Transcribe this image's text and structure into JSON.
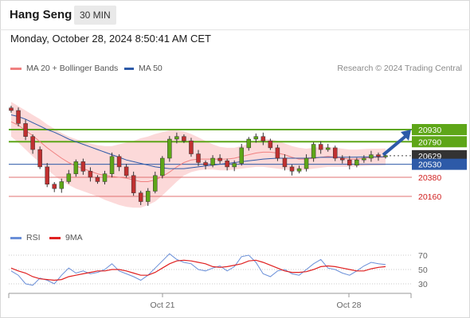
{
  "header": {
    "title": "Hang Seng",
    "interval": "30 MIN",
    "datetime": "Monday, October 28, 2024 8:50:41 AM CET"
  },
  "legend": {
    "ma20": "MA 20 + Bollinger Bands",
    "ma50": "MA 50",
    "credit": "Research © 2024 Trading Central",
    "rsi": "RSI",
    "ma9": "9MA"
  },
  "colors": {
    "resistance": "#5ea618",
    "support": "#e07070",
    "pivot": "#2d5aa8",
    "last_price_bg": "#333333",
    "ma20": "#f08080",
    "ma50": "#2d5aa8",
    "bollinger_fill": "#fbd2d2",
    "candle_up": "#5ea618",
    "candle_down": "#c03030",
    "rsi": "#6a8fd8",
    "rsi_ma9": "#e02020",
    "arrow": "#2d5aa8"
  },
  "chart_data": {
    "type": "candlestick",
    "price_range": [
      20050,
      21250
    ],
    "levels": [
      {
        "name": "resistance-2",
        "value": 20930,
        "label": "20930",
        "style": "resistance"
      },
      {
        "name": "resistance-1",
        "value": 20790,
        "label": "20790",
        "style": "resistance"
      },
      {
        "name": "last-price",
        "value": 20629,
        "label": "20629",
        "style": "last"
      },
      {
        "name": "pivot",
        "value": 20530,
        "label": "20530",
        "style": "pivot"
      },
      {
        "name": "support-1",
        "value": 20380,
        "label": "20380",
        "style": "support"
      },
      {
        "name": "support-2",
        "value": 20160,
        "label": "20160",
        "style": "support"
      }
    ],
    "x_labels": [
      "Oct 21",
      "Oct 28"
    ],
    "close_series": [
      21150,
      21000,
      20850,
      20700,
      20500,
      20300,
      20250,
      20330,
      20420,
      20560,
      20450,
      20380,
      20330,
      20420,
      20620,
      20500,
      20400,
      20200,
      20100,
      20220,
      20400,
      20600,
      20820,
      20850,
      20800,
      20650,
      20550,
      20520,
      20600,
      20570,
      20500,
      20540,
      20720,
      20820,
      20850,
      20800,
      20720,
      20600,
      20500,
      20450,
      20480,
      20600,
      20760,
      20700,
      20720,
      20600,
      20580,
      20520,
      20580,
      20600,
      20640,
      20620,
      20629
    ],
    "ma20_series": [
      21020,
      20980,
      20920,
      20860,
      20790,
      20720,
      20660,
      20600,
      20550,
      20510,
      20480,
      20450,
      20420,
      20400,
      20390,
      20380,
      20370,
      20350,
      20330,
      20330,
      20350,
      20390,
      20440,
      20500,
      20550,
      20580,
      20590,
      20590,
      20590,
      20590,
      20590,
      20600,
      20620,
      20640,
      20660,
      20670,
      20670,
      20660,
      20640,
      20610,
      20590,
      20590,
      20600,
      20610,
      20620,
      20610,
      20600,
      20590,
      20590,
      20600,
      20610,
      20610,
      20615
    ],
    "ma50_series": [
      21100,
      21080,
      21050,
      21010,
      20970,
      20930,
      20900,
      20860,
      20820,
      20790,
      20760,
      20730,
      20700,
      20670,
      20640,
      20610,
      20580,
      20560,
      20540,
      20520,
      20500,
      20490,
      20480,
      20480,
      20480,
      20490,
      20500,
      20510,
      20520,
      20530,
      20540,
      20550,
      20560,
      20570,
      20580,
      20590,
      20595,
      20600,
      20600,
      20600,
      20600,
      20600,
      20605,
      20610,
      20610,
      20612,
      20612,
      20612,
      20613,
      20614,
      20615,
      20616,
      20617
    ],
    "bollinger_upper": [
      21250,
      21200,
      21150,
      21100,
      21050,
      20990,
      20940,
      20890,
      20850,
      20820,
      20790,
      20770,
      20750,
      20740,
      20740,
      20760,
      20780,
      20800,
      20830,
      20850,
      20880,
      20900,
      20920,
      20920,
      20910,
      20880,
      20840,
      20800,
      20760,
      20730,
      20720,
      20720,
      20740,
      20770,
      20800,
      20820,
      20820,
      20800,
      20770,
      20740,
      20720,
      20710,
      20720,
      20730,
      20730,
      20720,
      20710,
      20700,
      20700,
      20705,
      20710,
      20710,
      20712
    ],
    "bollinger_lower": [
      20850,
      20780,
      20700,
      20620,
      20550,
      20470,
      20400,
      20340,
      20290,
      20250,
      20220,
      20190,
      20160,
      20120,
      20090,
      20060,
      20040,
      20030,
      20030,
      20060,
      20100,
      20170,
      20250,
      20330,
      20400,
      20440,
      20460,
      20470,
      20470,
      20460,
      20460,
      20470,
      20480,
      20490,
      20500,
      20500,
      20490,
      20480,
      20470,
      20460,
      20460,
      20470,
      20480,
      20490,
      20500,
      20500,
      20500,
      20500,
      20505,
      20510,
      20515,
      20515,
      20518
    ],
    "rsi": {
      "levels": [
        70,
        50,
        30
      ],
      "range": [
        10,
        80
      ],
      "rsi_series": [
        48,
        42,
        30,
        28,
        38,
        35,
        30,
        42,
        52,
        45,
        48,
        44,
        46,
        50,
        58,
        48,
        44,
        40,
        35,
        42,
        52,
        62,
        72,
        64,
        60,
        58,
        50,
        48,
        52,
        55,
        48,
        54,
        68,
        70,
        60,
        44,
        40,
        48,
        50,
        44,
        42,
        50,
        58,
        64,
        52,
        50,
        45,
        42,
        48,
        55,
        60,
        58,
        57
      ],
      "ma9_series": [
        52,
        48,
        45,
        40,
        37,
        36,
        35,
        36,
        40,
        42,
        44,
        46,
        48,
        48,
        50,
        50,
        48,
        45,
        42,
        42,
        46,
        52,
        58,
        62,
        63,
        62,
        60,
        58,
        54,
        53,
        54,
        56,
        58,
        62,
        63,
        60,
        56,
        52,
        48,
        46,
        46,
        47,
        50,
        54,
        55,
        54,
        52,
        50,
        48,
        48,
        51,
        53,
        54
      ]
    }
  }
}
